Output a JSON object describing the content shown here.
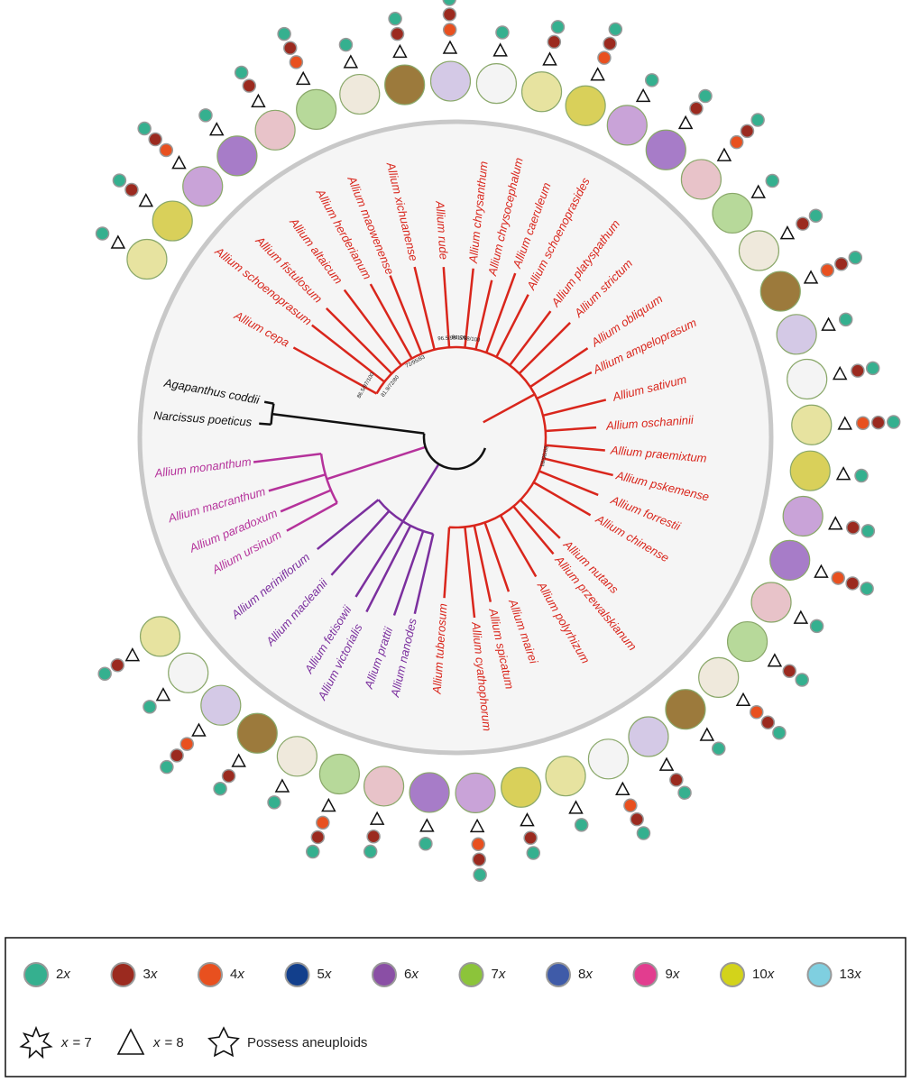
{
  "tree": {
    "taxa": [
      "Agapanthus coddii",
      "Narcissus poeticus",
      "Allium monanthum",
      "Allium macranthum",
      "Allium paradoxum",
      "Allium ursinum",
      "Allium neriniflorum",
      "Allium macleanii",
      "Allium fetisowii",
      "Allium victorialis",
      "Allium prattii",
      "Allium nanodes",
      "Allium tuberosum",
      "Allium cyathophorum",
      "Allium spicatum",
      "Allium mairei",
      "Allium polyrhizum",
      "Allium przewalskianum",
      "Allium nutans",
      "Allium chinense",
      "Allium forrestii",
      "Allium pskemense",
      "Allium praemixtum",
      "Allium oschaninii",
      "Allium sativum",
      "Allium ampeloprasum",
      "Allium obliquum",
      "Allium strictum",
      "Allium platyspathum",
      "Allium schoenoprasides",
      "Allium caeruleum",
      "Allium chrysocephalum",
      "Allium chrysanthum",
      "Allium rude",
      "Allium xichuanense",
      "Allium maowenense",
      "Allium herderianum",
      "Allium altaicum",
      "Allium fistulosum",
      "Allium schoenoprasum",
      "Allium cepa"
    ],
    "support": [
      "81.9/72/80",
      "72/95/83",
      "89/85/83",
      "96.5/99/100",
      "96.5/98/100",
      "86.5/97/100"
    ]
  },
  "legend": {
    "ploidy": [
      {
        "number": "2",
        "variable": "x",
        "color": "#35b08f"
      },
      {
        "number": "3",
        "variable": "x",
        "color": "#9b2a1f"
      },
      {
        "number": "4",
        "variable": "x",
        "color": "#e8501f"
      },
      {
        "number": "5",
        "variable": "x",
        "color": "#123f8c"
      },
      {
        "number": "6",
        "variable": "x",
        "color": "#8a4fa5"
      },
      {
        "number": "7",
        "variable": "x",
        "color": "#8cc43a"
      },
      {
        "number": "8",
        "variable": "x",
        "color": "#3f5ba8"
      },
      {
        "number": "9",
        "variable": "x",
        "color": "#e23d8f"
      },
      {
        "number": "10",
        "variable": "x",
        "color": "#d3d31a"
      },
      {
        "number": "13",
        "variable": "x",
        "color": "#7fcfe0"
      }
    ],
    "base": [
      {
        "variable": "x",
        "rest": "= 7"
      },
      {
        "variable": "x",
        "rest": "= 8"
      }
    ],
    "aneuploid": "Possess aneuploids"
  }
}
